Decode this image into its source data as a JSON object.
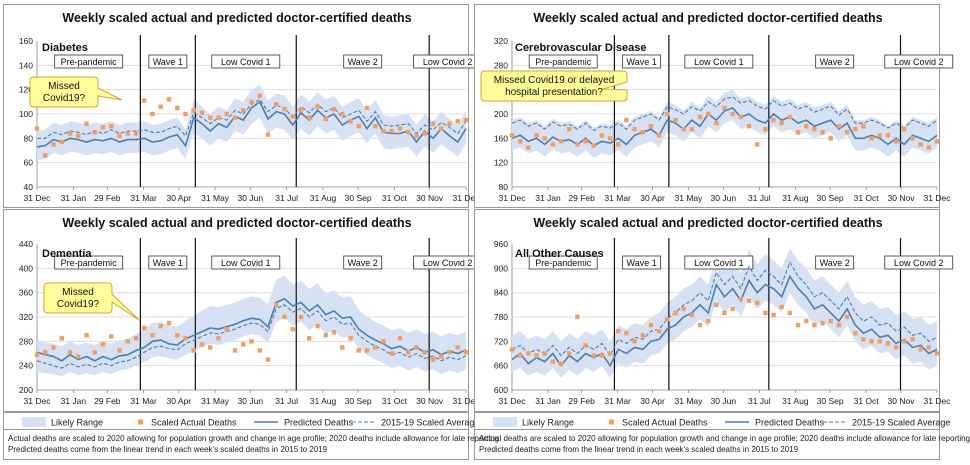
{
  "legend": {
    "likely_range": "Likely Range",
    "scaled_actual": "Scaled Actual Deaths",
    "predicted": "Predicted Deaths",
    "average": "2015-19 Scaled Average"
  },
  "notes": {
    "line1": "Actual deaths are scaled to 2020 allowing for population growth and change in age profile; 2020 deaths include allowance for late reporting",
    "line2": "Predicted deaths come from the linear trend in each week's scaled deaths in 2015 to 2019"
  },
  "colors": {
    "band": "#d6e2f3",
    "predicted": "#4d7cb7",
    "average": "#4d7cb7",
    "actual": "#f79d5c",
    "callout_fill": "#ffff99",
    "callout_border": "#d4a62a",
    "grid": "#d9d9d9"
  },
  "chart_data": {
    "type": "line",
    "x_tick_labels": [
      "31 Dec",
      "31 Jan",
      "29 Feb",
      "31 Mar",
      "30 Apr",
      "31 May",
      "30 Jun",
      "31 Jul",
      "31 Aug",
      "30 Sep",
      "31 Oct",
      "30 Nov",
      "31 Dec"
    ],
    "x_tick_weeks": [
      0,
      4.43,
      8.57,
      13,
      17.29,
      21.71,
      26,
      30.43,
      34.86,
      39.14,
      43.57,
      47.86,
      52.29
    ],
    "period_labels": [
      "Pre-pandemic",
      "Wave 1",
      "Low Covid 1",
      "Wave 2",
      "Low Covid 2"
    ],
    "period_bounds_weeks": [
      12.6,
      19.3,
      31.6,
      47.8
    ],
    "panels": [
      {
        "title": "Weekly scaled actual and predicted doctor-certified deaths",
        "label": "Diabetes",
        "ylim": [
          40,
          160
        ],
        "yticks": [
          40,
          60,
          80,
          100,
          120,
          140,
          160
        ],
        "callout": "Missed\nCovid19?",
        "predicted": [
          73,
          74,
          79,
          77,
          80,
          79,
          77,
          79,
          78,
          80,
          77,
          79,
          79,
          80,
          77,
          78,
          81,
          83,
          74,
          97,
          92,
          86,
          92,
          89,
          98,
          95,
          105,
          110,
          96,
          102,
          100,
          91,
          101,
          95,
          103,
          97,
          100,
          91,
          95,
          98,
          88,
          97,
          85,
          84,
          84,
          86,
          77,
          86,
          80,
          88,
          82,
          77,
          88
        ],
        "average": [
          80,
          80,
          85,
          83,
          86,
          85,
          83,
          86,
          84,
          87,
          84,
          86,
          86,
          87,
          85,
          85,
          88,
          90,
          82,
          101,
          97,
          92,
          97,
          95,
          103,
          100,
          108,
          112,
          102,
          107,
          105,
          97,
          106,
          101,
          108,
          102,
          105,
          97,
          100,
          103,
          94,
          102,
          91,
          90,
          91,
          92,
          84,
          91,
          87,
          93,
          89,
          84,
          94
        ],
        "low": [
          62,
          63,
          68,
          66,
          69,
          68,
          66,
          68,
          67,
          69,
          66,
          68,
          68,
          69,
          66,
          67,
          70,
          72,
          63,
          84,
          80,
          74,
          80,
          77,
          86,
          83,
          92,
          97,
          84,
          89,
          87,
          79,
          88,
          82,
          90,
          84,
          87,
          78,
          82,
          85,
          76,
          84,
          72,
          71,
          72,
          73,
          65,
          73,
          68,
          75,
          70,
          65,
          76
        ],
        "high": [
          86,
          87,
          93,
          91,
          94,
          93,
          91,
          93,
          92,
          94,
          91,
          93,
          93,
          94,
          91,
          92,
          95,
          97,
          87,
          112,
          106,
          100,
          106,
          103,
          113,
          110,
          120,
          124,
          111,
          117,
          115,
          106,
          116,
          110,
          118,
          112,
          115,
          106,
          110,
          113,
          102,
          112,
          99,
          98,
          99,
          100,
          91,
          100,
          94,
          102,
          96,
          91,
          103
        ],
        "actual": [
          88,
          66,
          75,
          77,
          84,
          82,
          92,
          85,
          89,
          90,
          82,
          84,
          84,
          111,
          100,
          106,
          112,
          105,
          100,
          103,
          101,
          97,
          97,
          100,
          97,
          103,
          110,
          115,
          83,
          108,
          104,
          98,
          103,
          97,
          106,
          96,
          104,
          100,
          94,
          90,
          105,
          90,
          86,
          86,
          88,
          85,
          82,
          84,
          92,
          88,
          92,
          94,
          95
        ]
      },
      {
        "title": "Weekly scaled actual and predicted doctor-certified deaths",
        "label": "Cerebrovascular Disease",
        "ylim": [
          80,
          320
        ],
        "yticks": [
          80,
          120,
          160,
          200,
          240,
          280,
          320
        ],
        "callout": "Missed Covid19 or delayed\nhospital presentation?",
        "predicted": [
          160,
          165,
          155,
          160,
          150,
          162,
          155,
          158,
          150,
          160,
          148,
          155,
          152,
          160,
          150,
          165,
          170,
          175,
          165,
          190,
          185,
          175,
          190,
          180,
          200,
          190,
          205,
          210,
          195,
          200,
          190,
          185,
          200,
          190,
          195,
          185,
          190,
          180,
          185,
          190,
          175,
          185,
          160,
          160,
          165,
          160,
          150,
          160,
          150,
          165,
          160,
          155,
          165
        ],
        "average": [
          185,
          190,
          180,
          185,
          175,
          187,
          180,
          183,
          175,
          185,
          173,
          180,
          177,
          185,
          175,
          190,
          195,
          200,
          190,
          212,
          207,
          200,
          212,
          205,
          220,
          212,
          225,
          228,
          218,
          222,
          213,
          208,
          222,
          213,
          218,
          208,
          213,
          203,
          208,
          213,
          198,
          208,
          185,
          185,
          190,
          185,
          177,
          185,
          177,
          190,
          185,
          180,
          190
        ],
        "low": [
          140,
          145,
          135,
          140,
          130,
          142,
          135,
          138,
          130,
          140,
          128,
          135,
          132,
          140,
          130,
          145,
          150,
          155,
          145,
          170,
          165,
          155,
          170,
          160,
          180,
          170,
          185,
          190,
          175,
          180,
          170,
          165,
          180,
          170,
          175,
          165,
          170,
          160,
          165,
          170,
          155,
          165,
          140,
          140,
          145,
          140,
          130,
          140,
          130,
          145,
          140,
          135,
          145
        ],
        "high": [
          190,
          195,
          185,
          190,
          180,
          192,
          185,
          188,
          180,
          190,
          178,
          185,
          182,
          190,
          180,
          195,
          200,
          205,
          195,
          220,
          215,
          205,
          220,
          210,
          230,
          220,
          235,
          240,
          225,
          230,
          220,
          215,
          230,
          220,
          225,
          215,
          220,
          210,
          215,
          220,
          205,
          215,
          190,
          190,
          195,
          190,
          180,
          190,
          180,
          195,
          190,
          185,
          195
        ],
        "actual": [
          165,
          155,
          145,
          165,
          160,
          150,
          155,
          175,
          150,
          155,
          148,
          165,
          160,
          150,
          190,
          175,
          170,
          180,
          165,
          200,
          190,
          175,
          175,
          195,
          200,
          185,
          210,
          200,
          195,
          180,
          150,
          175,
          190,
          185,
          195,
          170,
          180,
          175,
          170,
          160,
          180,
          170,
          175,
          180,
          160,
          165,
          165,
          155,
          175,
          160,
          150,
          145,
          155
        ]
      },
      {
        "title": "Weekly scaled actual and predicted doctor-certified deaths",
        "label": "Dementia",
        "ylim": [
          200,
          440
        ],
        "yticks": [
          200,
          240,
          280,
          320,
          360,
          400,
          440
        ],
        "callout": "Missed\nCovid19?",
        "predicted": [
          262,
          258,
          255,
          248,
          258,
          250,
          255,
          248,
          255,
          250,
          256,
          258,
          265,
          270,
          280,
          282,
          276,
          274,
          284,
          290,
          296,
          302,
          300,
          304,
          308,
          314,
          318,
          316,
          304,
          344,
          350,
          338,
          344,
          330,
          340,
          324,
          330,
          318,
          320,
          300,
          290,
          282,
          276,
          268,
          272,
          264,
          270,
          262,
          266,
          258,
          264,
          260,
          266
        ],
        "average": [
          248,
          244,
          240,
          236,
          244,
          238,
          242,
          238,
          244,
          240,
          246,
          248,
          254,
          262,
          270,
          272,
          268,
          266,
          276,
          282,
          288,
          294,
          292,
          296,
          300,
          306,
          310,
          308,
          296,
          334,
          340,
          328,
          334,
          320,
          330,
          314,
          320,
          308,
          310,
          290,
          280,
          272,
          266,
          258,
          262,
          254,
          260,
          252,
          256,
          248,
          254,
          250,
          256
        ],
        "low": [
          230,
          228,
          226,
          222,
          230,
          224,
          228,
          224,
          230,
          226,
          232,
          234,
          240,
          246,
          254,
          256,
          252,
          250,
          258,
          264,
          270,
          276,
          274,
          278,
          282,
          288,
          292,
          290,
          278,
          312,
          318,
          306,
          312,
          298,
          308,
          292,
          298,
          286,
          288,
          268,
          258,
          250,
          244,
          236,
          240,
          232,
          238,
          230,
          234,
          226,
          232,
          228,
          234
        ],
        "high": [
          282,
          278,
          276,
          272,
          280,
          274,
          278,
          274,
          280,
          276,
          282,
          284,
          292,
          300,
          310,
          312,
          306,
          304,
          314,
          322,
          330,
          338,
          336,
          340,
          344,
          350,
          354,
          352,
          340,
          382,
          388,
          374,
          380,
          366,
          376,
          358,
          364,
          352,
          354,
          332,
          320,
          312,
          306,
          298,
          302,
          294,
          300,
          292,
          296,
          288,
          294,
          290,
          296
        ],
        "actual": [
          258,
          262,
          270,
          285,
          262,
          255,
          290,
          262,
          275,
          288,
          265,
          280,
          285,
          302,
          290,
          305,
          310,
          290,
          285,
          265,
          275,
          270,
          285,
          300,
          265,
          275,
          280,
          265,
          250,
          340,
          320,
          300,
          320,
          285,
          305,
          290,
          295,
          270,
          285,
          265,
          265,
          270,
          280,
          260,
          285,
          262,
          270,
          262,
          250,
          255,
          262,
          270,
          262
        ]
      },
      {
        "title": "Weekly scaled actual and predicted doctor-certified deaths",
        "label": "All Other Causes",
        "ylim": [
          600,
          960
        ],
        "yticks": [
          600,
          660,
          720,
          780,
          840,
          900,
          960
        ],
        "callout": "",
        "predicted": [
          675,
          690,
          665,
          680,
          670,
          690,
          660,
          685,
          670,
          690,
          680,
          690,
          660,
          700,
          690,
          705,
          700,
          720,
          725,
          750,
          760,
          780,
          790,
          810,
          790,
          860,
          830,
          850,
          820,
          870,
          840,
          860,
          850,
          830,
          880,
          850,
          830,
          800,
          810,
          790,
          770,
          800,
          760,
          740,
          750,
          730,
          735,
          715,
          725,
          705,
          710,
          690,
          700
        ],
        "average": [
          700,
          710,
          690,
          700,
          690,
          710,
          685,
          705,
          690,
          710,
          700,
          715,
          685,
          725,
          715,
          730,
          725,
          745,
          750,
          775,
          790,
          810,
          820,
          840,
          820,
          890,
          860,
          880,
          850,
          905,
          870,
          895,
          880,
          860,
          915,
          880,
          860,
          830,
          840,
          820,
          800,
          830,
          790,
          770,
          780,
          760,
          765,
          745,
          755,
          735,
          740,
          720,
          730
        ],
        "low": [
          645,
          655,
          635,
          645,
          635,
          655,
          630,
          650,
          635,
          655,
          645,
          660,
          630,
          665,
          655,
          670,
          665,
          685,
          690,
          715,
          725,
          745,
          755,
          775,
          755,
          820,
          790,
          810,
          780,
          830,
          800,
          820,
          810,
          790,
          840,
          810,
          790,
          760,
          770,
          750,
          730,
          760,
          720,
          700,
          710,
          690,
          695,
          675,
          685,
          665,
          670,
          650,
          660
        ],
        "high": [
          735,
          745,
          725,
          735,
          725,
          745,
          720,
          740,
          725,
          745,
          735,
          750,
          720,
          760,
          750,
          765,
          760,
          780,
          790,
          815,
          830,
          850,
          860,
          880,
          860,
          930,
          900,
          920,
          890,
          945,
          910,
          935,
          920,
          900,
          950,
          920,
          900,
          870,
          880,
          860,
          840,
          870,
          830,
          810,
          820,
          800,
          805,
          785,
          795,
          775,
          780,
          760,
          770
        ],
        "actual": [
          700,
          685,
          690,
          685,
          690,
          670,
          665,
          690,
          780,
          710,
          685,
          685,
          690,
          745,
          740,
          720,
          735,
          760,
          745,
          775,
          790,
          800,
          785,
          760,
          770,
          810,
          790,
          800,
          825,
          820,
          815,
          790,
          785,
          805,
          790,
          760,
          770,
          760,
          765,
          770,
          760,
          780,
          740,
          725,
          720,
          720,
          715,
          705,
          720,
          725,
          700,
          705,
          690
        ]
      }
    ]
  }
}
